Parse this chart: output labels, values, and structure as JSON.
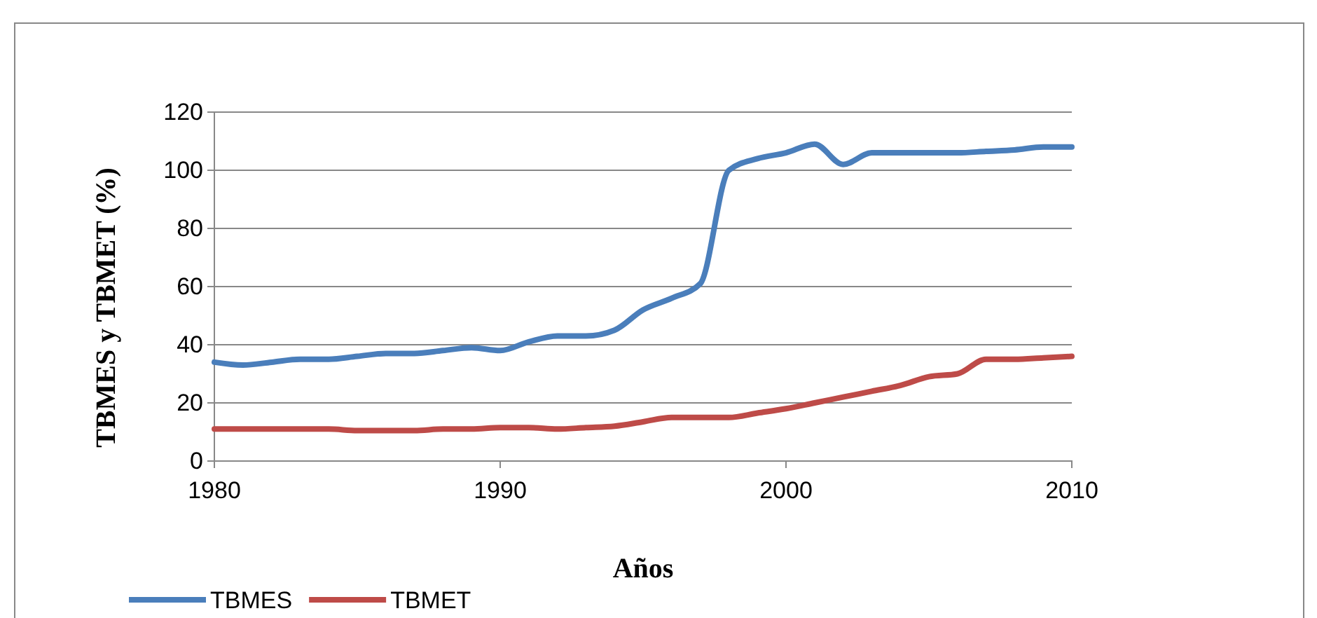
{
  "chart_data": {
    "type": "line",
    "xlabel": "Años",
    "ylabel": "TBMES y TBMET (%)",
    "x": [
      1980,
      1981,
      1982,
      1983,
      1984,
      1985,
      1986,
      1987,
      1988,
      1989,
      1990,
      1991,
      1992,
      1993,
      1994,
      1995,
      1996,
      1997,
      1998,
      1999,
      2000,
      2001,
      2002,
      2003,
      2004,
      2005,
      2006,
      2007,
      2008,
      2009,
      2010
    ],
    "series": [
      {
        "name": "TBMES",
        "color": "#4a7ebb",
        "values": [
          34,
          33,
          34,
          35,
          35,
          36,
          37,
          37,
          38,
          39,
          38,
          41,
          43,
          43,
          45,
          52,
          56,
          61,
          100,
          104,
          106,
          109,
          102,
          106,
          106,
          106,
          106,
          106.5,
          107,
          108,
          108
        ]
      },
      {
        "name": "TBMET",
        "color": "#be4b48",
        "values": [
          11,
          11,
          11,
          11,
          11,
          10.5,
          10.5,
          10.5,
          11,
          11,
          11.5,
          11.5,
          11,
          11.5,
          12,
          13.5,
          15,
          15,
          15,
          16.5,
          18,
          20,
          22,
          24,
          26,
          29,
          30,
          35,
          35,
          35.5,
          36
        ]
      }
    ],
    "xlim": [
      1980,
      2010
    ],
    "xticks": [
      1980,
      1990,
      2000,
      2010
    ],
    "ylim": [
      0,
      120
    ],
    "yticks": [
      0,
      20,
      40,
      60,
      80,
      100,
      120
    ],
    "grid": "y",
    "legend": "bottom left",
    "marker": "none",
    "line_style": "solid"
  }
}
